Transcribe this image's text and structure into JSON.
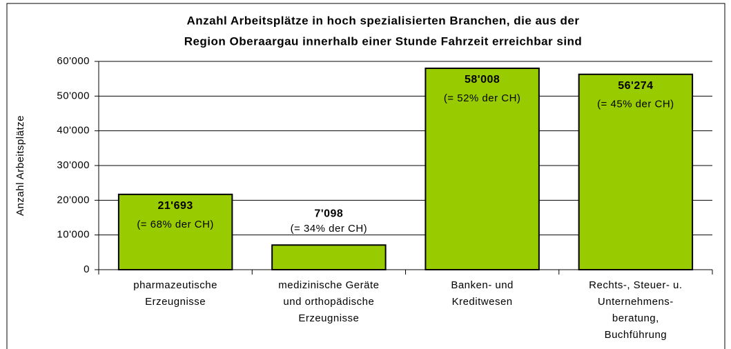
{
  "chart_data": {
    "type": "bar",
    "title": [
      "Anzahl Arbeitsplätze in hoch spezialisierten Branchen, die aus der",
      "Region Oberaargau innerhalb einer Stunde Fahrzeit erreichbar sind"
    ],
    "y_label": "Anzahl Arbeitsplätze",
    "categories": [
      [
        "pharmazeutische",
        "Erzeugnisse"
      ],
      [
        "medizinische Geräte",
        "und orthopädische",
        "Erzeugnisse"
      ],
      [
        "Banken- und",
        "Kreditwesen"
      ],
      [
        "Rechts-, Steuer- u.",
        "Unternehmens-",
        "beratung,",
        "Buchführung"
      ]
    ],
    "values": [
      21693,
      7098,
      58008,
      56274
    ],
    "value_labels": [
      "21'693",
      "7'098",
      "58'008",
      "56'274"
    ],
    "annotations": [
      "(= 68% der CH)",
      "(= 34% der CH)",
      "(= 52% der CH)",
      "(= 45% der CH)"
    ],
    "color": "#99cc00",
    "ylim": [
      0,
      60000
    ],
    "yticks": [
      0,
      {
        "value": 10000,
        "label": "10'000"
      },
      {
        "value": 20000,
        "label": "20'000"
      },
      {
        "value": 30000,
        "label": "30'000"
      },
      {
        "value": 40000,
        "label": "40'000"
      },
      {
        "value": 50000,
        "label": "50'000"
      },
      {
        "value": 60000,
        "label": "60'000"
      }
    ],
    "grid": true
  }
}
